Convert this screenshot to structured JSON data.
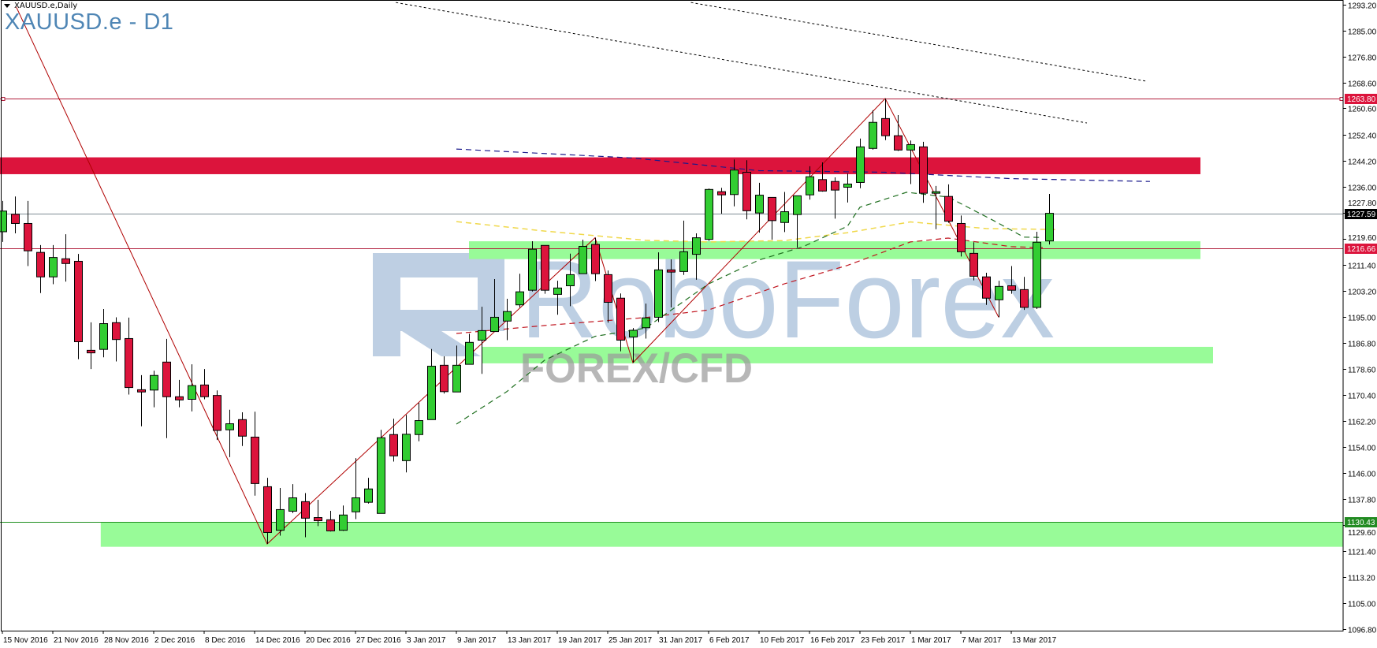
{
  "header": {
    "symbol_period": "XAUUSD.e,Daily",
    "title": "XAUUSD.e - D1"
  },
  "watermark": {
    "brand": "RoboForex",
    "subtitle": "FOREX/CFD"
  },
  "colors": {
    "bull": "#32cd32",
    "bear": "#dc143c",
    "resistance_zone": "#dc143c",
    "support_zone": "#98fb98",
    "level_line": "#b01e3c",
    "bid_line": "#7f8c94",
    "support_line": "#1f8f1f",
    "ma_blue": "#1a1a8c",
    "ma_yellow": "#f0d84a",
    "ma_red": "#c0141e",
    "ma_green": "#1e6e1e",
    "zigzag": "#b00000",
    "watermark_blue": "#a8bfda",
    "watermark_gray": "#9a9a9a"
  },
  "chart_data": {
    "type": "candlestick",
    "title": "XAUUSD.e - D1",
    "ylim": [
      1096.8,
      1293.2
    ],
    "y_ticks": [
      "1293.20",
      "1285.00",
      "1276.80",
      "1268.60",
      "1260.60",
      "1252.40",
      "1244.20",
      "1236.00",
      "1227.80",
      "1219.60",
      "1211.40",
      "1203.20",
      "1195.00",
      "1186.80",
      "1178.60",
      "1170.40",
      "1162.20",
      "1154.00",
      "1146.00",
      "1137.80",
      "1129.60",
      "1121.40",
      "1113.20",
      "1105.00",
      "1096.80"
    ],
    "x_ticks": [
      {
        "bar": 0,
        "label": "15 Nov 2016"
      },
      {
        "bar": 4,
        "label": "21 Nov 2016"
      },
      {
        "bar": 8,
        "label": "28 Nov 2016"
      },
      {
        "bar": 12,
        "label": "2 Dec 2016"
      },
      {
        "bar": 16,
        "label": "8 Dec 2016"
      },
      {
        "bar": 20,
        "label": "14 Dec 2016"
      },
      {
        "bar": 24,
        "label": "20 Dec 2016"
      },
      {
        "bar": 28,
        "label": "27 Dec 2016"
      },
      {
        "bar": 32,
        "label": "3 Jan 2017"
      },
      {
        "bar": 36,
        "label": "9 Jan 2017"
      },
      {
        "bar": 40,
        "label": "13 Jan 2017"
      },
      {
        "bar": 44,
        "label": "19 Jan 2017"
      },
      {
        "bar": 48,
        "label": "25 Jan 2017"
      },
      {
        "bar": 52,
        "label": "31 Jan 2017"
      },
      {
        "bar": 56,
        "label": "6 Feb 2017"
      },
      {
        "bar": 60,
        "label": "10 Feb 2017"
      },
      {
        "bar": 64,
        "label": "16 Feb 2017"
      },
      {
        "bar": 68,
        "label": "23 Feb 2017"
      },
      {
        "bar": 72,
        "label": "1 Mar 2017"
      },
      {
        "bar": 76,
        "label": "7 Mar 2017"
      },
      {
        "bar": 80,
        "label": "13 Mar 2017"
      }
    ],
    "ohlc": [
      [
        1221.8,
        1231.5,
        1218.6,
        1228.3
      ],
      [
        1227.3,
        1232.9,
        1221.3,
        1224.4
      ],
      [
        1224.4,
        1231.5,
        1211.0,
        1215.8
      ],
      [
        1215.3,
        1217.6,
        1202.5,
        1207.6
      ],
      [
        1207.6,
        1217.6,
        1205.3,
        1213.7
      ],
      [
        1213.3,
        1221.0,
        1206.1,
        1211.8
      ],
      [
        1212.5,
        1214.8,
        1181.7,
        1187.2
      ],
      [
        1184.5,
        1193.3,
        1178.6,
        1183.7
      ],
      [
        1184.8,
        1197.5,
        1182.3,
        1192.9
      ],
      [
        1193.2,
        1194.9,
        1181.0,
        1187.9
      ],
      [
        1188.2,
        1194.8,
        1170.6,
        1172.8
      ],
      [
        1172.1,
        1176.7,
        1160.6,
        1171.4
      ],
      [
        1172.0,
        1178.1,
        1166.6,
        1176.6
      ],
      [
        1180.8,
        1188.1,
        1156.9,
        1169.9
      ],
      [
        1169.9,
        1175.2,
        1166.6,
        1168.9
      ],
      [
        1169.1,
        1180.1,
        1165.3,
        1173.4
      ],
      [
        1173.6,
        1178.6,
        1169.1,
        1169.9
      ],
      [
        1170.3,
        1171.9,
        1156.3,
        1159.3
      ],
      [
        1159.5,
        1165.8,
        1150.9,
        1161.4
      ],
      [
        1162.7,
        1165.0,
        1154.4,
        1157.5
      ],
      [
        1157.2,
        1165.2,
        1138.8,
        1142.6
      ],
      [
        1141.6,
        1144.4,
        1123.6,
        1127.2
      ],
      [
        1127.9,
        1141.2,
        1126.2,
        1134.4
      ],
      [
        1133.9,
        1142.4,
        1133.3,
        1138.1
      ],
      [
        1136.9,
        1139.6,
        1125.7,
        1131.7
      ],
      [
        1131.9,
        1137.5,
        1129.2,
        1130.9
      ],
      [
        1131.2,
        1134.0,
        1127.5,
        1127.7
      ],
      [
        1127.9,
        1135.7,
        1127.7,
        1132.7
      ],
      [
        1133.7,
        1150.6,
        1131.4,
        1138.1
      ],
      [
        1136.7,
        1144.4,
        1136.3,
        1140.9
      ],
      [
        1133.2,
        1159.5,
        1133.2,
        1157.0
      ],
      [
        1158.0,
        1163.0,
        1149.5,
        1151.3
      ],
      [
        1149.8,
        1164.2,
        1146.1,
        1158.1
      ],
      [
        1158.0,
        1168.0,
        1155.9,
        1162.4
      ],
      [
        1162.7,
        1184.9,
        1162.7,
        1179.5
      ],
      [
        1179.8,
        1182.6,
        1170.9,
        1171.5
      ],
      [
        1171.4,
        1186.0,
        1171.4,
        1179.8
      ],
      [
        1180.1,
        1189.7,
        1180.1,
        1187.0
      ],
      [
        1187.7,
        1198.2,
        1177.1,
        1190.7
      ],
      [
        1190.4,
        1206.9,
        1190.4,
        1194.9
      ],
      [
        1193.7,
        1200.7,
        1187.7,
        1196.7
      ],
      [
        1198.8,
        1208.6,
        1198.0,
        1202.9
      ],
      [
        1203.4,
        1218.8,
        1203.0,
        1216.3
      ],
      [
        1217.5,
        1217.5,
        1202.3,
        1203.4
      ],
      [
        1202.1,
        1206.4,
        1195.7,
        1204.1
      ],
      [
        1204.8,
        1214.9,
        1198.4,
        1208.3
      ],
      [
        1208.6,
        1219.3,
        1208.6,
        1217.2
      ],
      [
        1217.8,
        1219.9,
        1206.3,
        1208.6
      ],
      [
        1208.3,
        1209.6,
        1193.2,
        1199.6
      ],
      [
        1200.9,
        1202.4,
        1184.2,
        1187.7
      ],
      [
        1188.7,
        1191.5,
        1180.6,
        1190.8
      ],
      [
        1191.6,
        1199.2,
        1188.2,
        1194.7
      ],
      [
        1194.9,
        1215.3,
        1193.4,
        1209.8
      ],
      [
        1209.8,
        1213.1,
        1198.0,
        1209.1
      ],
      [
        1209.3,
        1225.3,
        1208.2,
        1215.5
      ],
      [
        1214.7,
        1221.3,
        1206.7,
        1219.9
      ],
      [
        1219.4,
        1235.4,
        1218.9,
        1235.1
      ],
      [
        1234.4,
        1235.6,
        1227.5,
        1233.4
      ],
      [
        1233.5,
        1244.5,
        1229.8,
        1241.2
      ],
      [
        1240.5,
        1244.3,
        1225.7,
        1228.4
      ],
      [
        1227.7,
        1237.2,
        1221.5,
        1233.3
      ],
      [
        1232.6,
        1232.6,
        1219.3,
        1225.3
      ],
      [
        1224.7,
        1234.3,
        1221.7,
        1228.1
      ],
      [
        1227.2,
        1233.1,
        1216.8,
        1233.1
      ],
      [
        1233.4,
        1242.4,
        1231.9,
        1239.1
      ],
      [
        1238.2,
        1243.6,
        1234.4,
        1234.6
      ],
      [
        1237.6,
        1238.9,
        1225.9,
        1234.9
      ],
      [
        1235.8,
        1240.1,
        1231.0,
        1236.8
      ],
      [
        1237.3,
        1251.1,
        1235.5,
        1248.5
      ],
      [
        1248.0,
        1260.0,
        1247.6,
        1256.2
      ],
      [
        1257.4,
        1263.7,
        1250.6,
        1252.0
      ],
      [
        1252.0,
        1258.5,
        1247.2,
        1247.5
      ],
      [
        1247.5,
        1250.5,
        1236.8,
        1249.2
      ],
      [
        1248.5,
        1250.1,
        1230.9,
        1233.9
      ],
      [
        1233.9,
        1236.2,
        1222.6,
        1234.4
      ],
      [
        1232.9,
        1236.7,
        1224.6,
        1225.1
      ],
      [
        1224.4,
        1226.9,
        1214.0,
        1215.5
      ],
      [
        1215.0,
        1218.5,
        1206.5,
        1207.8
      ],
      [
        1207.6,
        1208.9,
        1198.8,
        1200.9
      ],
      [
        1200.4,
        1206.4,
        1194.9,
        1204.6
      ],
      [
        1204.8,
        1211.0,
        1202.3,
        1203.4
      ],
      [
        1203.6,
        1207.6,
        1197.2,
        1198.0
      ],
      [
        1198.0,
        1221.8,
        1197.5,
        1218.5
      ],
      [
        1218.9,
        1233.7,
        1217.8,
        1227.59
      ]
    ],
    "zones": [
      {
        "kind": "resistance",
        "from_bar": -1,
        "to_bar": 95,
        "top": 1245.2,
        "bottom": 1239.9
      },
      {
        "kind": "support",
        "from_bar": 37,
        "to_bar": 95,
        "top": 1218.8,
        "bottom": 1213.2
      },
      {
        "kind": "support",
        "from_bar": 38,
        "to_bar": 96,
        "top": 1185.6,
        "bottom": 1180.4
      },
      {
        "kind": "support",
        "from_bar": 7.8,
        "to_bar": 107,
        "top": 1130.43,
        "bottom": 1122.7
      }
    ],
    "levels": [
      {
        "price": 1263.8,
        "label": "1263.80",
        "kind": "level"
      },
      {
        "price": 1227.59,
        "label": "1227.59",
        "kind": "bid"
      },
      {
        "price": 1216.66,
        "label": "1216.66",
        "kind": "level"
      },
      {
        "price": 1130.43,
        "label": "1130.43",
        "kind": "support"
      }
    ],
    "trendlines": [
      {
        "points": [
          [
            31.2,
            1293.9
          ],
          [
            86.0,
            1256.0
          ]
        ]
      },
      {
        "points": [
          [
            54.6,
            1293.9
          ],
          [
            90.8,
            1269.1
          ]
        ]
      }
    ],
    "zigzag": [
      [
        1.1,
        1292.5
      ],
      [
        21,
        1123.6
      ],
      [
        47,
        1219.9
      ],
      [
        50,
        1180.6
      ],
      [
        70,
        1263.7
      ],
      [
        79,
        1194.9
      ]
    ],
    "moving_averages": [
      {
        "color_key": "ma_blue",
        "points": [
          [
            36,
            1247.8
          ],
          [
            50,
            1245.0
          ],
          [
            60,
            1241.0
          ],
          [
            70,
            1240.5
          ],
          [
            80,
            1238.5
          ],
          [
            91,
            1237.6
          ]
        ]
      },
      {
        "color_key": "ma_yellow",
        "points": [
          [
            36,
            1225.0
          ],
          [
            43,
            1222.0
          ],
          [
            51,
            1219.1
          ],
          [
            56,
            1218.6
          ],
          [
            62,
            1219.0
          ],
          [
            67,
            1221.5
          ],
          [
            72,
            1224.9
          ],
          [
            78,
            1222.8
          ],
          [
            83.5,
            1222.5
          ]
        ]
      },
      {
        "color_key": "ma_red",
        "points": [
          [
            36,
            1189.8
          ],
          [
            43,
            1192.3
          ],
          [
            51,
            1194.8
          ],
          [
            56,
            1197.2
          ],
          [
            62,
            1205.4
          ],
          [
            67,
            1211.2
          ],
          [
            72,
            1218.6
          ],
          [
            75,
            1219.8
          ],
          [
            80,
            1217.1
          ],
          [
            82.5,
            1216.8
          ]
        ]
      },
      {
        "color_key": "ma_green",
        "points": [
          [
            36,
            1161.3
          ],
          [
            40,
            1171.5
          ],
          [
            43,
            1181.4
          ],
          [
            47,
            1188.9
          ],
          [
            51,
            1191.5
          ],
          [
            56,
            1205.4
          ],
          [
            60,
            1212.9
          ],
          [
            63.5,
            1217.1
          ],
          [
            67,
            1223.5
          ],
          [
            68,
            1229.5
          ],
          [
            71.7,
            1234.2
          ],
          [
            75,
            1232.7
          ],
          [
            78.6,
            1225.3
          ],
          [
            81,
            1220.1
          ],
          [
            82.3,
            1220.0
          ]
        ]
      }
    ]
  }
}
